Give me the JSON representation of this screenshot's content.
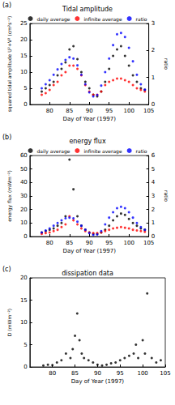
{
  "chart_data": [
    {
      "type": "scatter",
      "title": "Tidal amplitude",
      "annotations": [
        "(a)"
      ],
      "xlabel": "Day of Year (1997)",
      "ylabel": "squared tidal amplitude U²+V² (cm²s⁻²)",
      "y2label": "ratio",
      "x": [
        78,
        79,
        80,
        81,
        82,
        83,
        84,
        85,
        86,
        87,
        88,
        89,
        90,
        91,
        92,
        93,
        94,
        95,
        96,
        97,
        98,
        99,
        100,
        101,
        102,
        103,
        104
      ],
      "xlim": [
        75,
        105
      ],
      "xticks": [
        80,
        85,
        90,
        95,
        100,
        105
      ],
      "ylim": [
        0,
        25
      ],
      "yticks": [
        0,
        5,
        10,
        15,
        20,
        25
      ],
      "y2lim": [
        0,
        3
      ],
      "y2ticks": [
        0,
        1,
        2,
        3
      ],
      "grid": false,
      "legend": "top",
      "marker": "circle",
      "series": [
        {
          "name": "daily average",
          "color": "#000000",
          "values": [
            4,
            5,
            6,
            7,
            9,
            11,
            13,
            17,
            18,
            14,
            10,
            7,
            5,
            3,
            2.5,
            4,
            7,
            11,
            15,
            17,
            18,
            15,
            12,
            9,
            7,
            5,
            4.5
          ]
        },
        {
          "name": "infinite average",
          "color": "#ff0000",
          "values": [
            3,
            3.5,
            4.5,
            6,
            7,
            9,
            10,
            12,
            12,
            11,
            9,
            6,
            4,
            3,
            3,
            4,
            6,
            7,
            7.5,
            8,
            8,
            7.5,
            7,
            6,
            5,
            4.5,
            4
          ]
        },
        {
          "name": "ratio",
          "color": "#0000ff",
          "axis": "y2",
          "values": [
            0.6,
            0.75,
            0.9,
            1.1,
            1.3,
            1.5,
            1.65,
            1.75,
            1.7,
            1.45,
            1.1,
            0.75,
            0.45,
            0.3,
            0.35,
            0.7,
            1.2,
            1.7,
            2.2,
            2.6,
            2.65,
            2.5,
            2.1,
            1.6,
            1.1,
            0.75,
            0.55
          ]
        }
      ]
    },
    {
      "type": "scatter",
      "title": "energy flux",
      "annotations": [
        "(b)"
      ],
      "xlabel": "Day of Year (1997)",
      "ylabel": "energy flux (mWm⁻²)",
      "y2label": "ratio",
      "x": [
        78,
        79,
        80,
        81,
        82,
        83,
        84,
        85,
        86,
        87,
        88,
        89,
        90,
        91,
        92,
        93,
        94,
        95,
        96,
        97,
        98,
        99,
        100,
        101,
        102,
        103,
        104
      ],
      "xlim": [
        75,
        105
      ],
      "xticks": [
        80,
        85,
        90,
        95,
        100,
        105
      ],
      "ylim": [
        0,
        60
      ],
      "yticks": [
        0,
        10,
        20,
        30,
        40,
        50,
        60
      ],
      "y2lim": [
        0,
        6
      ],
      "y2ticks": [
        0,
        1,
        2,
        3,
        4,
        5,
        6
      ],
      "grid": false,
      "legend": "top",
      "marker": "circle",
      "series": [
        {
          "name": "daily average",
          "color": "#000000",
          "values": [
            3,
            4,
            5,
            6,
            8,
            10,
            15,
            57,
            35,
            15,
            8,
            5,
            3,
            2,
            2,
            3,
            5,
            8,
            12,
            15,
            17,
            16,
            13,
            10,
            8,
            6,
            5
          ]
        },
        {
          "name": "infinite average",
          "color": "#ff0000",
          "values": [
            2,
            2.5,
            3,
            4,
            5,
            7,
            9,
            15,
            12,
            9,
            6,
            4,
            3,
            2.5,
            2.5,
            3,
            4,
            5,
            6,
            6.5,
            7,
            6.5,
            6,
            5,
            4.5,
            4,
            3.5
          ]
        },
        {
          "name": "ratio",
          "color": "#0000ff",
          "axis": "y2",
          "values": [
            0.3,
            0.45,
            0.6,
            0.8,
            1.0,
            1.2,
            1.35,
            1.4,
            1.35,
            1.1,
            0.8,
            0.5,
            0.25,
            0.12,
            0.15,
            0.4,
            0.9,
            1.4,
            1.8,
            2.1,
            2.2,
            2.1,
            1.8,
            1.4,
            1.0,
            0.7,
            0.5
          ]
        }
      ]
    },
    {
      "type": "scatter",
      "title": "dissipation data",
      "annotations": [
        "(c)"
      ],
      "xlabel": "Day of Year (1997)",
      "ylabel": "D (mWm⁻²)",
      "x": [
        78,
        79,
        80,
        81,
        82,
        83,
        84,
        84.5,
        85,
        85.5,
        86,
        86.5,
        87,
        88,
        89,
        90,
        91,
        92,
        93,
        94,
        95,
        96,
        97,
        98,
        98.5,
        99,
        100,
        100.5,
        101,
        102,
        103,
        104
      ],
      "xlim": [
        75,
        105
      ],
      "xticks": [
        80,
        85,
        90,
        95,
        100,
        105
      ],
      "ylim": [
        0,
        20
      ],
      "yticks": [
        0,
        5,
        10,
        15,
        20
      ],
      "grid": false,
      "marker": "circle",
      "series": [
        {
          "color": "#000000",
          "values": [
            0.3,
            0.5,
            0.4,
            1,
            1.5,
            3,
            2,
            4,
            7,
            12,
            6,
            3,
            2,
            1.5,
            1,
            0.5,
            0.3,
            0.5,
            0.8,
            1,
            1.5,
            2,
            2.5,
            3,
            5,
            2,
            6,
            3,
            16.5,
            2,
            1,
            1.5
          ]
        }
      ]
    }
  ]
}
